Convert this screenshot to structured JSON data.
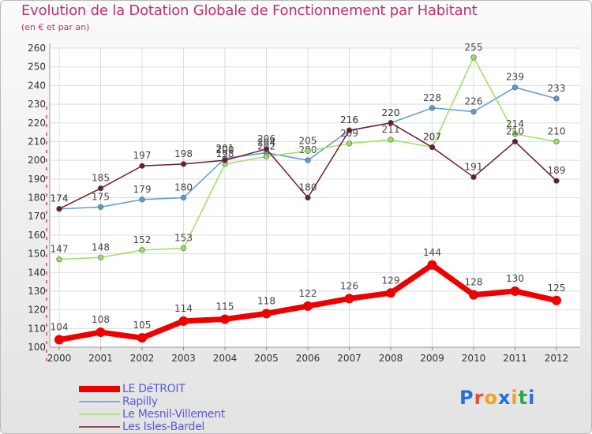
{
  "title": "Evolution de la Dotation Globale de Fonctionnement par Habitant",
  "subtitle": "(en € et par an)",
  "logo": {
    "text": "Proxiti",
    "colors": [
      "#2a6fd6",
      "#e8512f",
      "#f3a21b",
      "#2a6fd6",
      "#f3a21b",
      "#2ea84a",
      "#2a6fd6"
    ]
  },
  "chart_data": {
    "type": "line",
    "title": "Evolution de la Dotation Globale de Fonctionnement par Habitant",
    "subtitle": "(en € et par an)",
    "x": [
      "2000",
      "2001",
      "2002",
      "2003",
      "2004",
      "2005",
      "2006",
      "2007",
      "2008",
      "2009",
      "2010",
      "2011",
      "2012"
    ],
    "ylim": [
      100,
      260
    ],
    "yticks": [
      100,
      110,
      120,
      130,
      140,
      150,
      160,
      170,
      180,
      190,
      200,
      210,
      220,
      230,
      240,
      250,
      260
    ],
    "grid": true,
    "legend": "bottom-left",
    "series": [
      {
        "name": "LE DéTROIT",
        "color": "#ee0000",
        "bold": true,
        "values": [
          104,
          108,
          105,
          114,
          115,
          118,
          122,
          126,
          129,
          144,
          128,
          130,
          125
        ]
      },
      {
        "name": "Rapilly",
        "color": "#5b9bd5",
        "values": [
          174,
          175,
          179,
          180,
          201,
          204,
          200,
          216,
          220,
          228,
          226,
          239,
          233
        ]
      },
      {
        "name": "Le Mesnil-Villement",
        "color": "#9be062",
        "values": [
          147,
          148,
          152,
          153,
          198,
          202,
          205,
          209,
          211,
          207,
          255,
          214,
          210
        ]
      },
      {
        "name": "Les Isles-Bardel",
        "color": "#6b1c2a",
        "values": [
          174,
          185,
          197,
          198,
          200,
          206,
          180,
          216,
          220,
          207,
          191,
          210,
          189
        ]
      }
    ]
  }
}
